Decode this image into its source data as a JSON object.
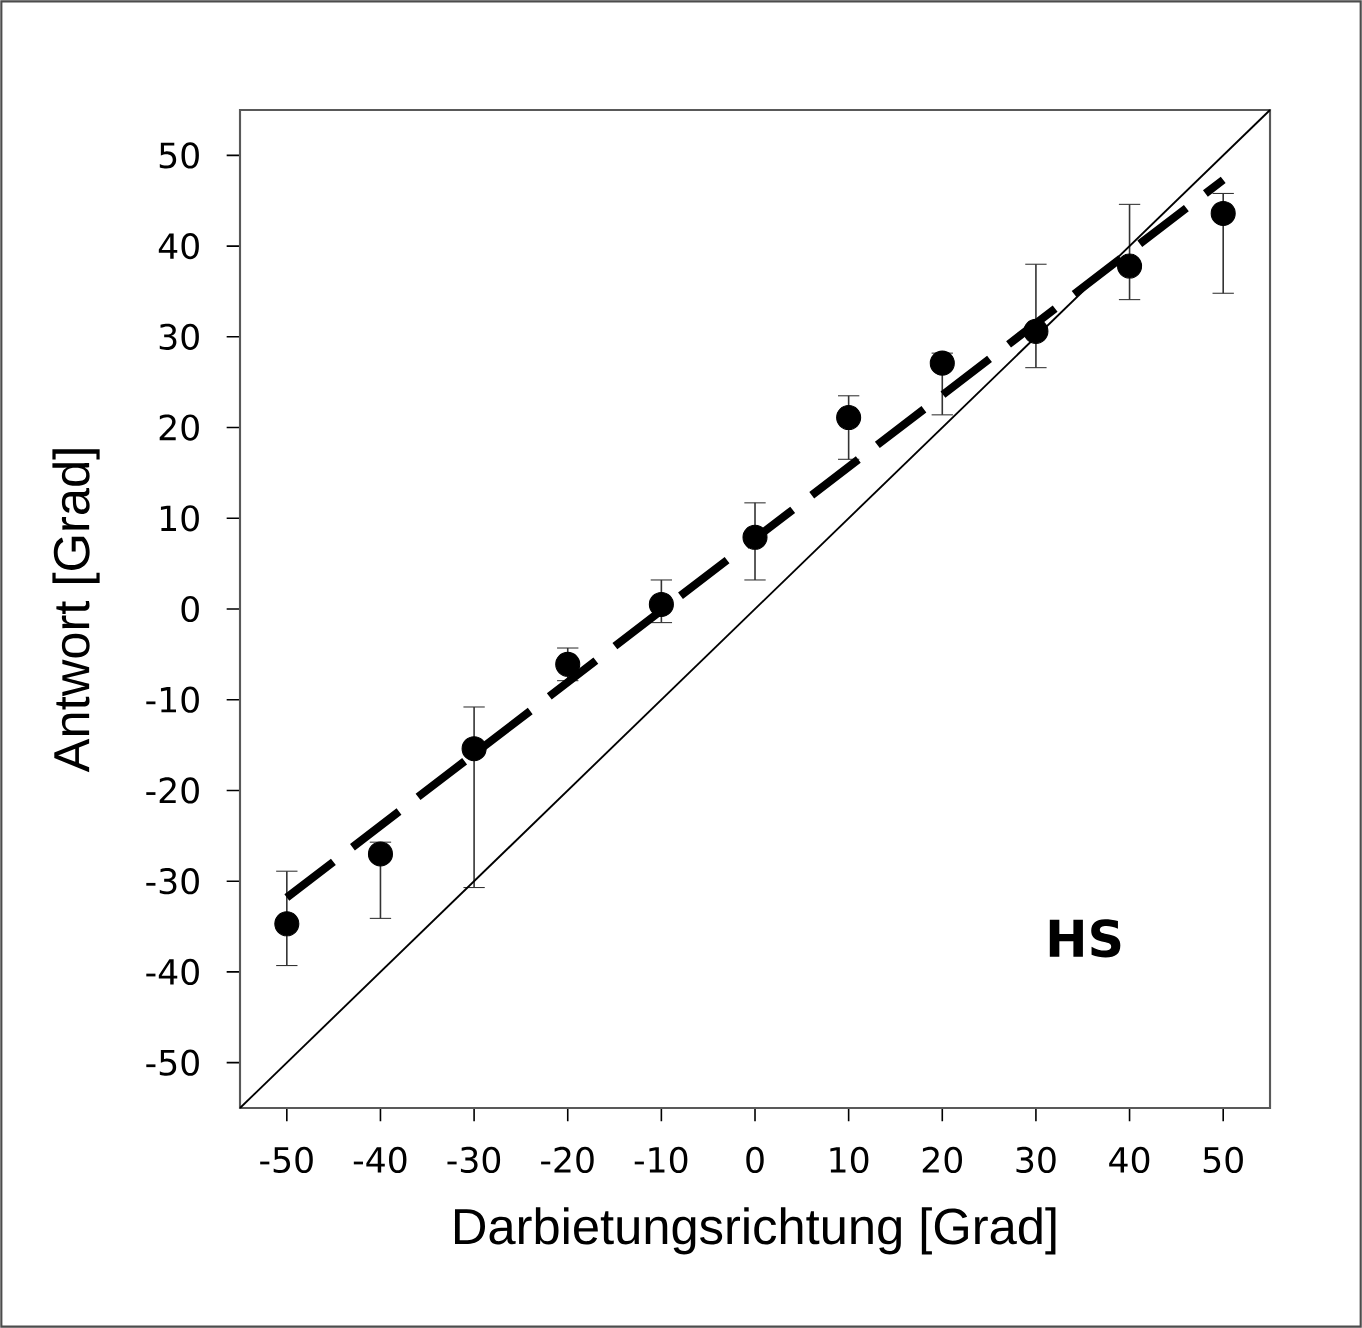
{
  "chart_data": {
    "type": "scatter",
    "xlabel": "Darbietungsrichtung [Grad]",
    "ylabel": "Antwort [Grad]",
    "annotations": [
      "HS"
    ],
    "xlim": [
      -55,
      55
    ],
    "ylim": [
      -55,
      55
    ],
    "xticks": [
      -50,
      -40,
      -30,
      -20,
      -10,
      0,
      10,
      20,
      30,
      40,
      50
    ],
    "yticks": [
      -50,
      -40,
      -30,
      -20,
      -10,
      0,
      10,
      20,
      30,
      40,
      50
    ],
    "series": [
      {
        "color": "#000000",
        "marker": "circle",
        "x": [
          -50,
          -40,
          -30,
          -20,
          -10,
          0,
          10,
          20,
          30,
          40,
          50
        ],
        "values": [
          -34.7,
          -27.0,
          -15.4,
          -6.1,
          0.5,
          7.9,
          21.1,
          27.1,
          30.6,
          37.8,
          43.6
        ],
        "errors": [
          [
            -39.3,
            -28.9
          ],
          [
            -34.1,
            -25.7
          ],
          [
            -30.7,
            -10.8
          ],
          [
            -7.9,
            -4.3
          ],
          [
            -1.5,
            3.2
          ],
          [
            3.2,
            11.7
          ],
          [
            16.5,
            23.5
          ],
          [
            21.4,
            28.2
          ],
          [
            26.6,
            38.0
          ],
          [
            34.1,
            44.6
          ],
          [
            34.8,
            45.8
          ]
        ]
      },
      {
        "type": "line",
        "color": "#000000",
        "line_style": "dashed",
        "marker": "none",
        "x": [
          -50,
          50
        ],
        "values": [
          -31.8,
          47.3
        ]
      },
      {
        "type": "line",
        "color": "#000000",
        "line_style": "solid",
        "marker": "none",
        "x": [
          -55,
          55
        ],
        "values": [
          -55,
          55
        ]
      }
    ]
  }
}
